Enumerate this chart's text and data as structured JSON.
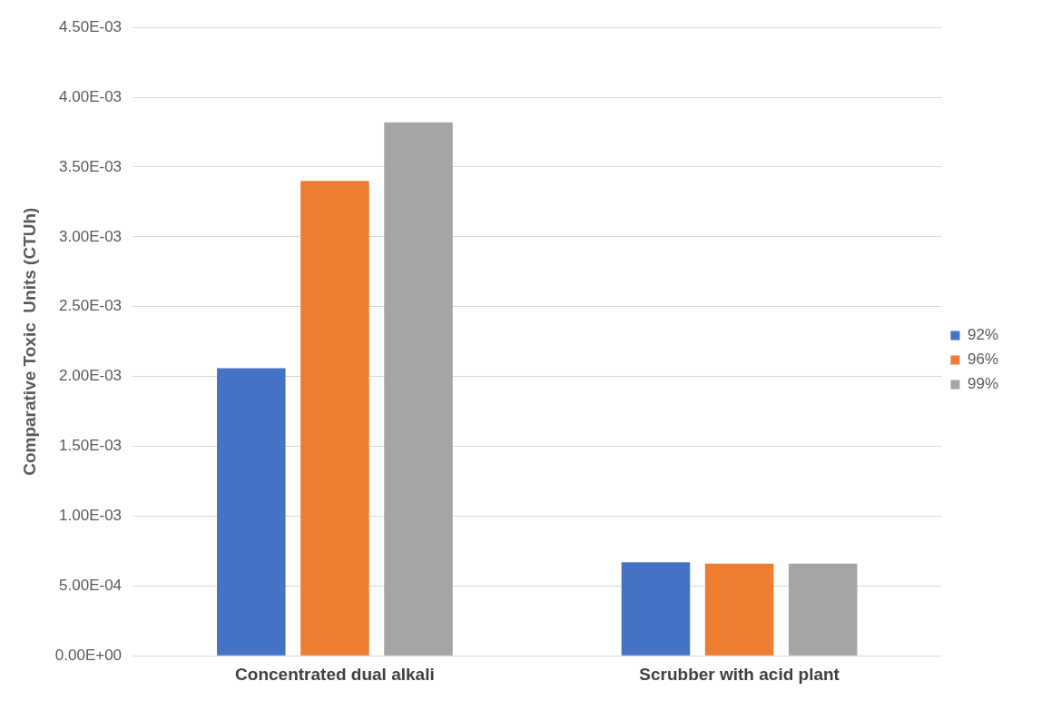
{
  "chart_data": {
    "type": "bar",
    "ylabel": "Comparative Toxic  Units (CTUh)",
    "categories": [
      "Concentrated dual alkali",
      "Scrubber with acid plant"
    ],
    "series": [
      {
        "name": "92%",
        "color": "#4472c4",
        "values": [
          0.00206,
          0.00067
        ]
      },
      {
        "name": "96%",
        "color": "#ed7d31",
        "values": [
          0.0034,
          0.00066
        ]
      },
      {
        "name": "99%",
        "color": "#a5a5a5",
        "values": [
          0.00382,
          0.00066
        ]
      }
    ],
    "ylim": [
      0,
      0.0045
    ],
    "yticks": [
      {
        "value": 0,
        "label": "0.00E+00"
      },
      {
        "value": 0.0005,
        "label": "5.00E-04"
      },
      {
        "value": 0.001,
        "label": "1.00E-03"
      },
      {
        "value": 0.0015,
        "label": "1.50E-03"
      },
      {
        "value": 0.002,
        "label": "2.00E-03"
      },
      {
        "value": 0.0025,
        "label": "2.50E-03"
      },
      {
        "value": 0.003,
        "label": "3.00E-03"
      },
      {
        "value": 0.0035,
        "label": "3.50E-03"
      },
      {
        "value": 0.004,
        "label": "4.00E-03"
      },
      {
        "value": 0.0045,
        "label": "4.50E-03"
      }
    ],
    "grid": "y",
    "legend": "right"
  }
}
